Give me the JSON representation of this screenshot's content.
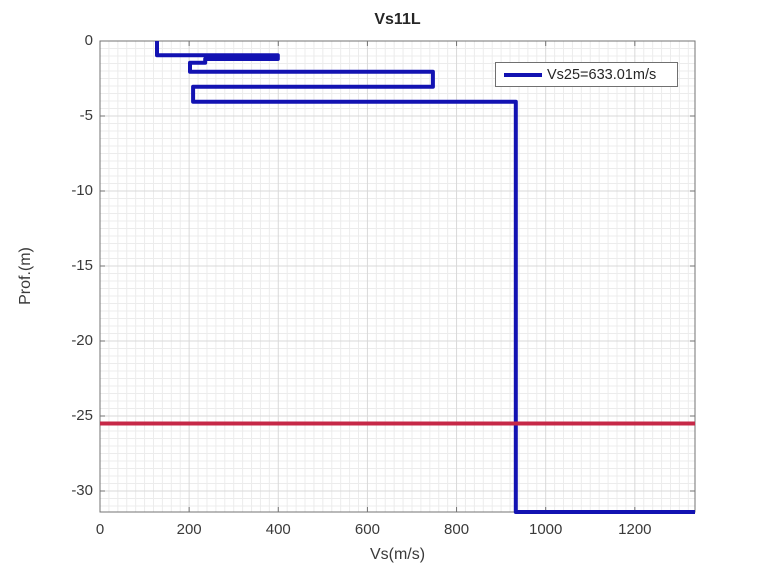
{
  "title": "Vs11L",
  "legend": {
    "label": "Vs25=633.01m/s",
    "line_color": "#1212b2"
  },
  "chart_data": {
    "type": "line",
    "title": "Vs11L",
    "xlabel": "Vs(m/s)",
    "ylabel": "Prof.(m)",
    "xlim": [
      0,
      1335
    ],
    "ylim": [
      -31.4,
      0
    ],
    "x_ticks": [
      0,
      200,
      400,
      600,
      800,
      1000,
      1200
    ],
    "y_ticks": [
      0,
      -5,
      -10,
      -15,
      -20,
      -25,
      -30
    ],
    "grid": "on",
    "minor_grid": "on",
    "x_minor_step": 20,
    "y_minor_step": 0.5,
    "legend_position": "top-right",
    "series": [
      {
        "name": "vs-depth-profile",
        "label": "Vs25=633.01m/s",
        "color": "#1212b2",
        "width": 4,
        "points": [
          [
            128,
            0
          ],
          [
            128,
            -0.95
          ],
          [
            399,
            -0.95
          ],
          [
            399,
            -1.2
          ],
          [
            236,
            -1.2
          ],
          [
            236,
            -1.45
          ],
          [
            202,
            -1.45
          ],
          [
            202,
            -2.05
          ],
          [
            747,
            -2.05
          ],
          [
            747,
            -3.05
          ],
          [
            209,
            -3.05
          ],
          [
            209,
            -4.05
          ],
          [
            933,
            -4.05
          ],
          [
            933,
            -31.4
          ],
          [
            1335,
            -31.4
          ]
        ]
      },
      {
        "name": "depth-marker-line",
        "label": "",
        "color": "#c62847",
        "width": 4,
        "points": [
          [
            0,
            -25.5
          ],
          [
            1335,
            -25.5
          ]
        ]
      }
    ]
  }
}
